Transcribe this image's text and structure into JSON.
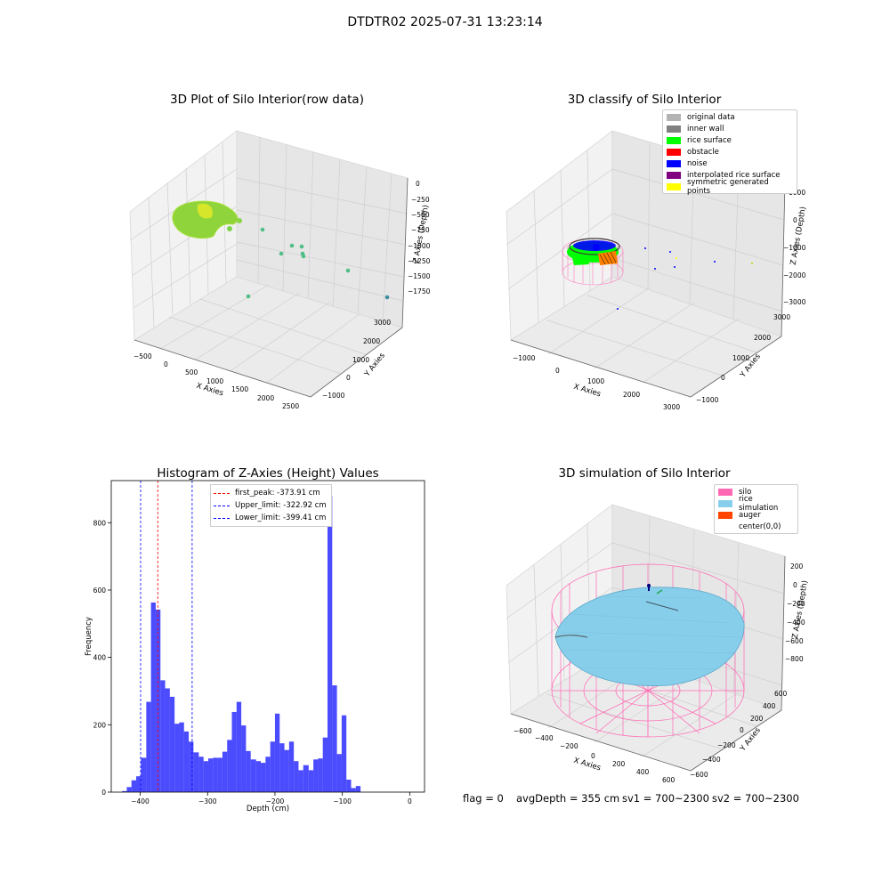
{
  "suptitle": "DTDTR02 2025-07-31 13:23:14",
  "panels": {
    "raw": {
      "title": "3D Plot of Silo Interior(row data)",
      "xlabel": "X Axies",
      "ylabel": "Y Axies",
      "zlabel": "Z Axies (Depth)",
      "xticks": [
        "−500",
        "0",
        "500",
        "1000",
        "1500",
        "2000",
        "2500"
      ],
      "yticks": [
        "−1000",
        "0",
        "1000",
        "2000",
        "3000"
      ],
      "zticks": [
        "0",
        "−250",
        "−500",
        "−750",
        "−1000",
        "−1250",
        "−1500",
        "−1750"
      ]
    },
    "classify": {
      "title": "3D classify of Silo Interior",
      "xlabel": "X Axies",
      "ylabel": "Y Axies",
      "zlabel": "Z Axies (Depth)",
      "xticks": [
        "−1000",
        "0",
        "1000",
        "2000",
        "3000"
      ],
      "yticks": [
        "−1000",
        "0",
        "1000",
        "2000",
        "3000"
      ],
      "zticks": [
        "1000",
        "0",
        "−1000",
        "−2000",
        "−3000"
      ],
      "legend": [
        {
          "label": "original data",
          "color": "#b3b3b3"
        },
        {
          "label": "inner wall",
          "color": "#808080"
        },
        {
          "label": "rice surface",
          "color": "#00ff00"
        },
        {
          "label": "obstacle",
          "color": "#ff0000"
        },
        {
          "label": "noise",
          "color": "#0000ff"
        },
        {
          "label": "interpolated rice surface",
          "color": "#800080"
        },
        {
          "label": "symmetric generated points",
          "color": "#ffff00"
        }
      ]
    },
    "simulation": {
      "title": "3D simulation of Silo Interior",
      "xlabel": "X Axies",
      "ylabel": "Y Axies",
      "zlabel": "Z Axies (Depth)",
      "xticks": [
        "−600",
        "−400",
        "−200",
        "0",
        "200",
        "400",
        "600"
      ],
      "yticks": [
        "−600",
        "−400",
        "−200",
        "0",
        "200",
        "400",
        "600"
      ],
      "zticks": [
        "200",
        "0",
        "−200",
        "−400",
        "−600",
        "−800"
      ],
      "legend": [
        {
          "label": "silo",
          "color": "#ff69b4"
        },
        {
          "label": "rice simulation",
          "color": "#87ceeb"
        },
        {
          "label": "auger",
          "color": "#ff4500"
        },
        {
          "label": "center(0,0)",
          "color": "#ffffff"
        }
      ]
    }
  },
  "status": {
    "flag": "flag = 0",
    "avg": "avgDepth = 355 cm",
    "sv1": "sv1 = 700~2300",
    "sv2": "sv2 = 700~2300"
  },
  "chart_data": {
    "type": "bar",
    "title": "Histogram of Z-Axies (Height) Values",
    "xlabel": "Depth (cm)",
    "ylabel": "Frequency",
    "xlim": [
      -443,
      22
    ],
    "ylim": [
      0,
      925
    ],
    "xticks": [
      -400,
      -300,
      -200,
      -100,
      0
    ],
    "yticks": [
      0,
      200,
      400,
      600,
      800
    ],
    "bar_color": "#0000ff",
    "bins": [
      {
        "x0": -427,
        "x1": -420,
        "value": 3
      },
      {
        "x0": -420,
        "x1": -413,
        "value": 15
      },
      {
        "x0": -413,
        "x1": -406,
        "value": 35
      },
      {
        "x0": -406,
        "x1": -399,
        "value": 47
      },
      {
        "x0": -399,
        "x1": -391,
        "value": 102
      },
      {
        "x0": -391,
        "x1": -384,
        "value": 268
      },
      {
        "x0": -384,
        "x1": -377,
        "value": 563
      },
      {
        "x0": -377,
        "x1": -370,
        "value": 542
      },
      {
        "x0": -370,
        "x1": -363,
        "value": 332
      },
      {
        "x0": -363,
        "x1": -356,
        "value": 308
      },
      {
        "x0": -356,
        "x1": -349,
        "value": 283
      },
      {
        "x0": -349,
        "x1": -342,
        "value": 203
      },
      {
        "x0": -342,
        "x1": -335,
        "value": 207
      },
      {
        "x0": -335,
        "x1": -328,
        "value": 180
      },
      {
        "x0": -328,
        "x1": -321,
        "value": 150
      },
      {
        "x0": -321,
        "x1": -313,
        "value": 118
      },
      {
        "x0": -313,
        "x1": -306,
        "value": 105
      },
      {
        "x0": -306,
        "x1": -299,
        "value": 92
      },
      {
        "x0": -299,
        "x1": -292,
        "value": 100
      },
      {
        "x0": -292,
        "x1": -285,
        "value": 102
      },
      {
        "x0": -285,
        "x1": -278,
        "value": 102
      },
      {
        "x0": -278,
        "x1": -271,
        "value": 120
      },
      {
        "x0": -271,
        "x1": -264,
        "value": 155
      },
      {
        "x0": -264,
        "x1": -257,
        "value": 238
      },
      {
        "x0": -257,
        "x1": -250,
        "value": 268
      },
      {
        "x0": -250,
        "x1": -243,
        "value": 198
      },
      {
        "x0": -243,
        "x1": -236,
        "value": 122
      },
      {
        "x0": -236,
        "x1": -228,
        "value": 97
      },
      {
        "x0": -228,
        "x1": -221,
        "value": 92
      },
      {
        "x0": -221,
        "x1": -214,
        "value": 87
      },
      {
        "x0": -214,
        "x1": -207,
        "value": 105
      },
      {
        "x0": -207,
        "x1": -200,
        "value": 150
      },
      {
        "x0": -200,
        "x1": -193,
        "value": 233
      },
      {
        "x0": -193,
        "x1": -186,
        "value": 145
      },
      {
        "x0": -186,
        "x1": -179,
        "value": 125
      },
      {
        "x0": -179,
        "x1": -172,
        "value": 150
      },
      {
        "x0": -172,
        "x1": -165,
        "value": 92
      },
      {
        "x0": -165,
        "x1": -158,
        "value": 65
      },
      {
        "x0": -158,
        "x1": -150,
        "value": 80
      },
      {
        "x0": -150,
        "x1": -143,
        "value": 65
      },
      {
        "x0": -143,
        "x1": -136,
        "value": 97
      },
      {
        "x0": -136,
        "x1": -129,
        "value": 100
      },
      {
        "x0": -129,
        "x1": -122,
        "value": 162
      },
      {
        "x0": -122,
        "x1": -115,
        "value": 880
      },
      {
        "x0": -115,
        "x1": -108,
        "value": 317
      },
      {
        "x0": -108,
        "x1": -101,
        "value": 113
      },
      {
        "x0": -101,
        "x1": -94,
        "value": 228
      },
      {
        "x0": -94,
        "x1": -87,
        "value": 37
      },
      {
        "x0": -87,
        "x1": -80,
        "value": 12
      },
      {
        "x0": -80,
        "x1": -73,
        "value": 18
      }
    ],
    "vlines": [
      {
        "label": "first_peak: -373.91 cm",
        "x": -373.91,
        "color": "#ff0000"
      },
      {
        "label": "Upper_limit: -322.92 cm",
        "x": -322.92,
        "color": "#0000ff"
      },
      {
        "label": "Lower_limit: -399.41 cm",
        "x": -399.41,
        "color": "#0000ff"
      }
    ]
  }
}
